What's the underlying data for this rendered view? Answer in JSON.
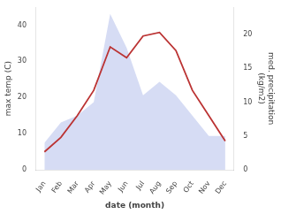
{
  "chart_data": {
    "type": "line",
    "categories": [
      "Jan",
      "Feb",
      "Mar",
      "Apr",
      "May",
      "Jun",
      "Jul",
      "Aug",
      "Sep",
      "Oct",
      "Nov",
      "Dec"
    ],
    "series": [
      {
        "type": "area",
        "color": "#c8d0f0",
        "axis": "y2",
        "values": [
          4,
          7,
          8,
          10,
          23,
          18,
          11,
          13,
          11,
          8,
          5,
          5
        ]
      },
      {
        "type": "line",
        "color": "#bb3333",
        "values": [
          5,
          9,
          15,
          22,
          34,
          31,
          37,
          38,
          33,
          22,
          15,
          8
        ]
      }
    ],
    "xlabel": "date (month)",
    "ylabel": "max temp (C)",
    "y2label": "med. precipitation\n(kg/m2)",
    "ylim": [
      0,
      45
    ],
    "yticks": [
      0,
      10,
      20,
      30,
      40
    ],
    "y2lim": [
      0,
      24
    ],
    "y2ticks": [
      0,
      5,
      10,
      15,
      20
    ],
    "grid": false
  }
}
